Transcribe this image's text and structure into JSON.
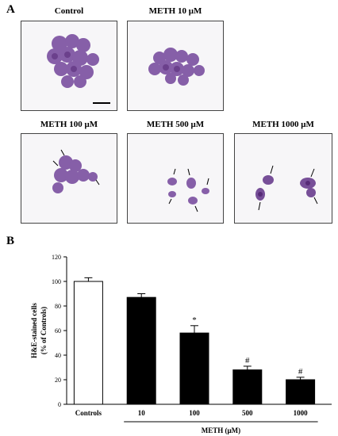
{
  "figure": {
    "panel_a": "A",
    "panel_b": "B",
    "images": [
      {
        "label": "Control"
      },
      {
        "label": "METH 10 μM"
      },
      {
        "label": "METH 100 μM"
      },
      {
        "label": "METH 500 μM"
      },
      {
        "label": "METH 1000 μM"
      }
    ],
    "colors": {
      "stain": "#7a4fa0",
      "stain_dark": "#5a2d7a",
      "bar_control": "#ffffff",
      "bar_meth": "#000000"
    }
  },
  "chart_data": {
    "type": "bar",
    "categories": [
      "Controls",
      "10",
      "100",
      "500",
      "1000"
    ],
    "values": [
      100,
      87,
      58,
      28,
      20
    ],
    "errors": [
      3,
      3,
      6,
      3,
      2
    ],
    "annotations": [
      "",
      "",
      "*",
      "#",
      "#"
    ],
    "ylabel_line1": "H&E-stained cells",
    "ylabel_line2": "(% of Controls)",
    "xlabel": "METH (μM)",
    "ylim": [
      0,
      120
    ],
    "yticks": [
      "0",
      "20",
      "40",
      "60",
      "80",
      "100",
      "120"
    ],
    "grid": false
  }
}
